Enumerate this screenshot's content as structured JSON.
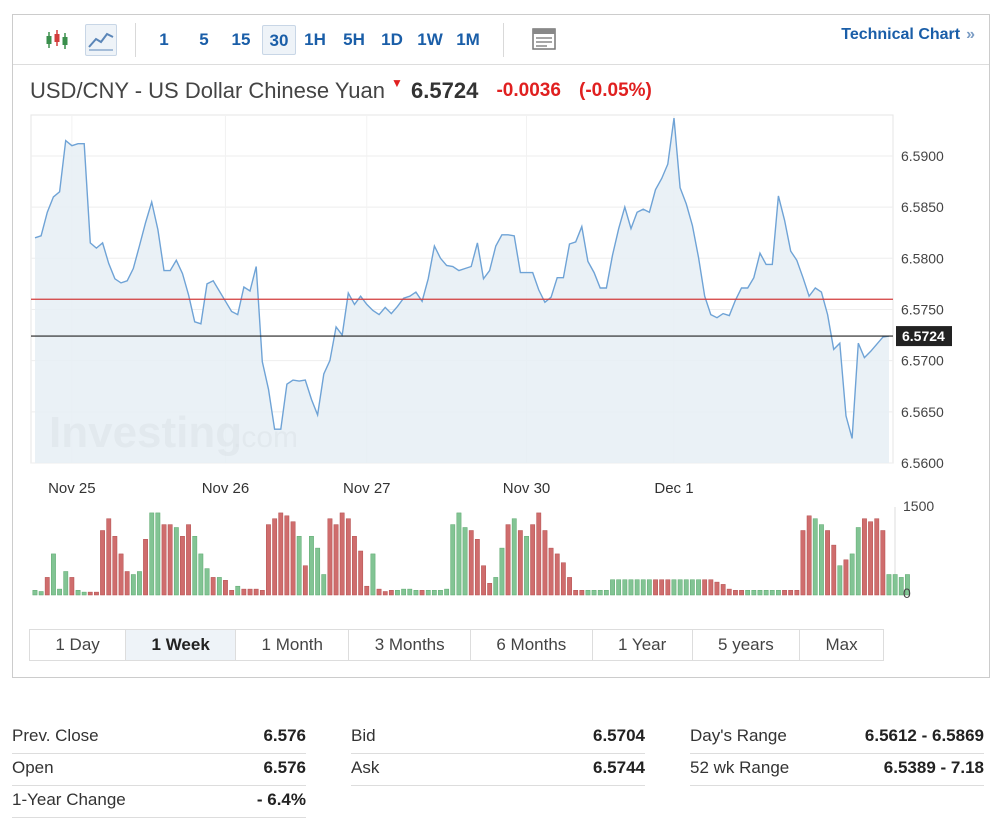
{
  "toolbar": {
    "intervals": [
      "1",
      "5",
      "15",
      "30",
      "1H",
      "5H",
      "1D",
      "1W",
      "1M"
    ],
    "active_interval": "30",
    "technical_chart": "Technical Chart",
    "technical_arrow": "»"
  },
  "quote": {
    "name": "USD/CNY - US Dollar Chinese Yuan",
    "direction_icon": "down-arrow-icon",
    "price": "6.5724",
    "change": "-0.0036",
    "change_pct": "(-0.05%)"
  },
  "colors": {
    "line": "#6fa3d6",
    "area": "#e6eef5",
    "prev_close_line": "#d23c3c",
    "last_price_line": "#222222",
    "volume_up": "#82c494",
    "volume_down": "#cf6d6d",
    "accent": "#1a5ea8",
    "negative": "#e02020"
  },
  "chart_data": {
    "type": "area",
    "title": "USD/CNY - US Dollar Chinese Yuan",
    "ylim": [
      6.56,
      6.594
    ],
    "y_ticks": [
      "6.5900",
      "6.5850",
      "6.5800",
      "6.5750",
      "6.5700",
      "6.5650",
      "6.5600"
    ],
    "x_ticks": [
      {
        "label": "Nov 25",
        "index": 6
      },
      {
        "label": "Nov 26",
        "index": 31
      },
      {
        "label": "Nov 27",
        "index": 54
      },
      {
        "label": "Nov 30",
        "index": 80
      },
      {
        "label": "Dec 1",
        "index": 104
      }
    ],
    "grid": true,
    "prev_close": 6.576,
    "last_price": 6.5724,
    "last_price_label": "6.5724",
    "series": [
      {
        "values": [
          6.582,
          6.5822,
          6.5845,
          6.586,
          6.5865,
          6.5915,
          6.591,
          6.5912,
          6.5912,
          6.5815,
          6.581,
          6.5815,
          6.5795,
          6.578,
          6.5776,
          6.5778,
          6.579,
          6.5812,
          6.5835,
          6.5855,
          6.5828,
          6.5788,
          6.5788,
          6.5798,
          6.5785,
          6.5764,
          6.5738,
          6.5736,
          6.5775,
          6.5778,
          6.5768,
          6.5758,
          6.5748,
          6.5745,
          6.5772,
          6.5768,
          6.5792,
          6.5699,
          6.5672,
          6.5633,
          6.5633,
          6.5677,
          6.5681,
          6.568,
          6.5681,
          6.5662,
          6.5647,
          6.5687,
          6.57,
          6.5733,
          6.5725,
          6.5766,
          6.5755,
          6.5763,
          6.5755,
          6.5749,
          6.5745,
          6.5752,
          6.5746,
          6.5753,
          6.5761,
          6.5763,
          6.5767,
          6.5758,
          6.578,
          6.5812,
          6.58,
          6.5793,
          6.5792,
          6.5788,
          6.579,
          6.5792,
          6.5815,
          6.578,
          6.5788,
          6.5812,
          6.5823,
          6.5823,
          6.5822,
          6.5786,
          6.5786,
          6.5786,
          6.5769,
          6.5757,
          6.5762,
          6.5781,
          6.5781,
          6.5814,
          6.5816,
          6.5831,
          6.5797,
          6.5786,
          6.5771,
          6.5771,
          6.5803,
          6.5829,
          6.585,
          6.5829,
          6.5845,
          6.5848,
          6.5845,
          6.5867,
          6.5878,
          6.5892,
          6.5937,
          6.5869,
          6.5853,
          6.5832,
          6.5801,
          6.5763,
          6.5745,
          6.5742,
          6.5746,
          6.5744,
          6.5759,
          6.5771,
          6.5771,
          6.5781,
          6.5805,
          6.5794,
          6.5794,
          6.5861,
          6.5837,
          6.5807,
          6.5798,
          6.5781,
          6.5763,
          6.5771,
          6.5767,
          6.5745,
          6.5711,
          6.5717,
          6.5646,
          6.5624,
          6.5717,
          6.5703,
          6.5709,
          6.5716,
          6.5723,
          6.5724
        ]
      }
    ],
    "volume": {
      "max_label": "1500",
      "zero_label": "0",
      "max": 1500,
      "values": [
        80,
        60,
        300,
        700,
        100,
        400,
        300,
        80,
        50,
        50,
        50,
        1100,
        1300,
        1000,
        700,
        400,
        350,
        400,
        950,
        1400,
        1400,
        1200,
        1200,
        1150,
        1000,
        1200,
        1000,
        700,
        450,
        300,
        300,
        250,
        80,
        150,
        100,
        100,
        100,
        80,
        1200,
        1300,
        1400,
        1350,
        1250,
        1000,
        500,
        1000,
        800,
        350,
        1300,
        1200,
        1400,
        1300,
        1000,
        750,
        150,
        700,
        100,
        60,
        80,
        80,
        100,
        100,
        80,
        80,
        80,
        80,
        80,
        100,
        1200,
        1400,
        1150,
        1100,
        950,
        500,
        200,
        300,
        800,
        1200,
        1300,
        1100,
        1000,
        1200,
        1400,
        1100,
        800,
        700,
        550,
        300,
        80,
        80,
        80,
        80,
        80,
        80,
        260,
        260,
        260,
        260,
        260,
        260,
        260,
        260,
        260,
        260,
        260,
        260,
        260,
        260,
        260,
        260,
        260,
        220,
        180,
        100,
        80,
        80,
        80,
        80,
        80,
        80,
        80,
        80,
        80,
        80,
        80,
        1100,
        1350,
        1300,
        1200,
        1100,
        850,
        500,
        600,
        700,
        1150,
        1300,
        1250,
        1300,
        1100,
        350,
        350,
        300,
        350
      ],
      "direction": [
        "u",
        "u",
        "d",
        "u",
        "u",
        "u",
        "d",
        "u",
        "u",
        "d",
        "d",
        "d",
        "d",
        "d",
        "d",
        "d",
        "u",
        "u",
        "d",
        "u",
        "u",
        "d",
        "d",
        "u",
        "d",
        "d",
        "u",
        "u",
        "u",
        "d",
        "u",
        "d",
        "d",
        "u",
        "d",
        "d",
        "d",
        "d",
        "d",
        "d",
        "d",
        "d",
        "d",
        "u",
        "d",
        "u",
        "u",
        "u",
        "d",
        "d",
        "d",
        "d",
        "d",
        "d",
        "d",
        "u",
        "d",
        "d",
        "d",
        "u",
        "u",
        "u",
        "u",
        "d",
        "u",
        "u",
        "u",
        "u",
        "u",
        "u",
        "u",
        "d",
        "d",
        "d",
        "d",
        "u",
        "u",
        "d",
        "u",
        "d",
        "u",
        "d",
        "d",
        "d",
        "d",
        "d",
        "d",
        "d",
        "d",
        "d",
        "u",
        "u",
        "u",
        "u",
        "u",
        "u",
        "u",
        "u",
        "u",
        "u",
        "u",
        "d",
        "d",
        "d",
        "u",
        "u",
        "u",
        "u",
        "u",
        "d",
        "d",
        "d",
        "d",
        "d",
        "d",
        "d",
        "u",
        "u",
        "u",
        "u",
        "u",
        "u",
        "d",
        "d",
        "d",
        "d",
        "d",
        "u",
        "u",
        "d",
        "d",
        "u",
        "d",
        "u",
        "u",
        "d",
        "d",
        "d",
        "d",
        "u",
        "u",
        "u",
        "u",
        "u",
        "u"
      ]
    }
  },
  "range_tabs": [
    "1 Day",
    "1 Week",
    "1 Month",
    "3 Months",
    "6 Months",
    "1 Year",
    "5 years",
    "Max"
  ],
  "active_range": "1 Week",
  "watermark": {
    "brand": "Investing",
    "suffix": ".com"
  },
  "stats": {
    "col1": [
      {
        "label": "Prev. Close",
        "value": "6.576"
      },
      {
        "label": "Open",
        "value": "6.576"
      },
      {
        "label": "1-Year Change",
        "value": "- 6.4%"
      }
    ],
    "col2": [
      {
        "label": "Bid",
        "value": "6.5704"
      },
      {
        "label": "Ask",
        "value": "6.5744"
      }
    ],
    "col3": [
      {
        "label": "Day's Range",
        "value": "6.5612 - 6.5869"
      },
      {
        "label": "52 wk Range",
        "value": "6.5389 - 7.18"
      }
    ]
  }
}
